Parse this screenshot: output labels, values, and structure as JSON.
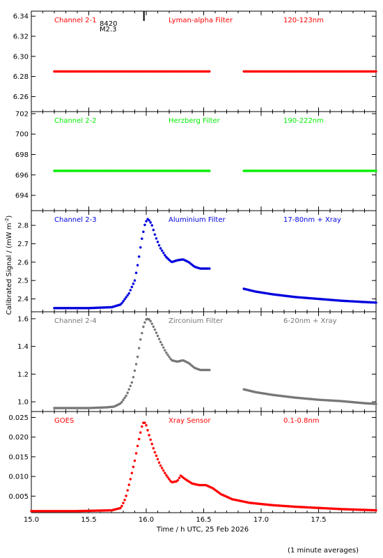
{
  "chart_data": {
    "type": "scatter",
    "shared_x": {
      "range": [
        15.0,
        18.0
      ],
      "ticks": [
        "15.0",
        "15.5",
        "16.0",
        "16.5",
        "17.0",
        "17.5"
      ],
      "label": "Time / h UTC, 25 Feb 2026"
    },
    "ylabel": "Calibrated Signal / (mW m",
    "ylabel_sup": "-2",
    "ylabel_end": ")",
    "footnote": "(1 minute averages)",
    "flare_marker": {
      "x": 15.98,
      "label1": "8420",
      "label2": "M2.3"
    },
    "panels": [
      {
        "channel": "Channel 2-1",
        "filter": "Lyman-alpha Filter",
        "band": "120-123nm",
        "color": "#ff0000",
        "ylim": [
          6.245,
          6.345
        ],
        "yticks": [
          "6.26",
          "6.28",
          "6.30",
          "6.32",
          "6.34"
        ],
        "series": [
          {
            "x": [
              15.2,
              16.55
            ],
            "y": [
              6.285,
              6.285
            ]
          },
          {
            "x": [
              16.85,
              18.0
            ],
            "y": [
              6.285,
              6.285
            ]
          }
        ]
      },
      {
        "channel": "Channel 2-2",
        "filter": "Herzberg Filter",
        "band": "190-222nm",
        "color": "#00ee00",
        "ylim": [
          692.5,
          702.2
        ],
        "yticks": [
          "694",
          "696",
          "698",
          "700",
          "702"
        ],
        "series": [
          {
            "x": [
              15.2,
              16.55
            ],
            "y": [
              696.4,
              696.4
            ]
          },
          {
            "x": [
              16.85,
              18.0
            ],
            "y": [
              696.4,
              696.4
            ]
          }
        ]
      },
      {
        "channel": "Channel 2-3",
        "filter": "Aluminium Filter",
        "band": "17-80nm + Xray",
        "color": "#0000dd",
        "ylim": [
          2.33,
          2.88
        ],
        "yticks": [
          "2.4",
          "2.5",
          "2.6",
          "2.7",
          "2.8"
        ],
        "series": [
          {
            "x": [
              15.2,
              15.5,
              15.7,
              15.78,
              15.85,
              15.9,
              15.93,
              15.96,
              15.99,
              16.01,
              16.03,
              16.05,
              16.08,
              16.12,
              16.17,
              16.22,
              16.27,
              16.32,
              16.37,
              16.42,
              16.47,
              16.55
            ],
            "y": [
              2.35,
              2.35,
              2.355,
              2.37,
              2.43,
              2.5,
              2.6,
              2.72,
              2.81,
              2.835,
              2.825,
              2.8,
              2.74,
              2.68,
              2.63,
              2.6,
              2.61,
              2.615,
              2.6,
              2.575,
              2.565,
              2.565
            ]
          },
          {
            "x": [
              16.85,
              16.95,
              17.1,
              17.3,
              17.5,
              17.7,
              17.9,
              18.0
            ],
            "y": [
              2.455,
              2.44,
              2.425,
              2.41,
              2.4,
              2.39,
              2.383,
              2.38
            ]
          }
        ]
      },
      {
        "channel": "Channel 2-4",
        "filter": "Zirconium Filter",
        "band": "6-20nm + Xray",
        "color": "#777777",
        "ylim": [
          0.93,
          1.65
        ],
        "yticks": [
          "1.0",
          "1.2",
          "1.4",
          "1.6"
        ],
        "series": [
          {
            "x": [
              15.2,
              15.5,
              15.65,
              15.72,
              15.78,
              15.83,
              15.88,
              15.92,
              15.95,
              15.98,
              16.0,
              16.02,
              16.04,
              16.07,
              16.12,
              16.17,
              16.22,
              16.27,
              16.32,
              16.37,
              16.42,
              16.47,
              16.55
            ],
            "y": [
              0.955,
              0.955,
              0.96,
              0.965,
              0.99,
              1.05,
              1.15,
              1.3,
              1.45,
              1.56,
              1.595,
              1.6,
              1.58,
              1.53,
              1.44,
              1.36,
              1.3,
              1.29,
              1.3,
              1.28,
              1.245,
              1.23,
              1.23
            ]
          },
          {
            "x": [
              16.85,
              16.95,
              17.1,
              17.3,
              17.5,
              17.7,
              17.9,
              18.0
            ],
            "y": [
              1.09,
              1.07,
              1.05,
              1.03,
              1.015,
              1.005,
              0.99,
              0.985
            ]
          }
        ]
      },
      {
        "channel": "GOES",
        "filter": "Xray Sensor",
        "band": "0.1-0.8nm",
        "color": "#ff0000",
        "ylim": [
          0.0008,
          0.0265
        ],
        "yticks": [
          "0.005",
          "0.010",
          "0.015",
          "0.020",
          "0.025"
        ],
        "series": [
          {
            "x": [
              15.0,
              15.4,
              15.7,
              15.78,
              15.82,
              15.86,
              15.9,
              15.93,
              15.96,
              15.98,
              16.0,
              16.03,
              16.07,
              16.12,
              16.17,
              16.22,
              16.27,
              16.3,
              16.34,
              16.4,
              16.46,
              16.52,
              16.58,
              16.65,
              16.75,
              16.9,
              17.1,
              17.3,
              17.5,
              17.7,
              17.9,
              18.0
            ],
            "y": [
              0.0012,
              0.0012,
              0.0014,
              0.002,
              0.0045,
              0.009,
              0.014,
              0.0185,
              0.0225,
              0.024,
              0.023,
              0.02,
              0.0165,
              0.013,
              0.0105,
              0.0085,
              0.0088,
              0.0102,
              0.0093,
              0.0082,
              0.0078,
              0.0078,
              0.007,
              0.0055,
              0.0042,
              0.0033,
              0.0027,
              0.0023,
              0.002,
              0.0017,
              0.0015,
              0.0014
            ]
          }
        ]
      }
    ]
  }
}
